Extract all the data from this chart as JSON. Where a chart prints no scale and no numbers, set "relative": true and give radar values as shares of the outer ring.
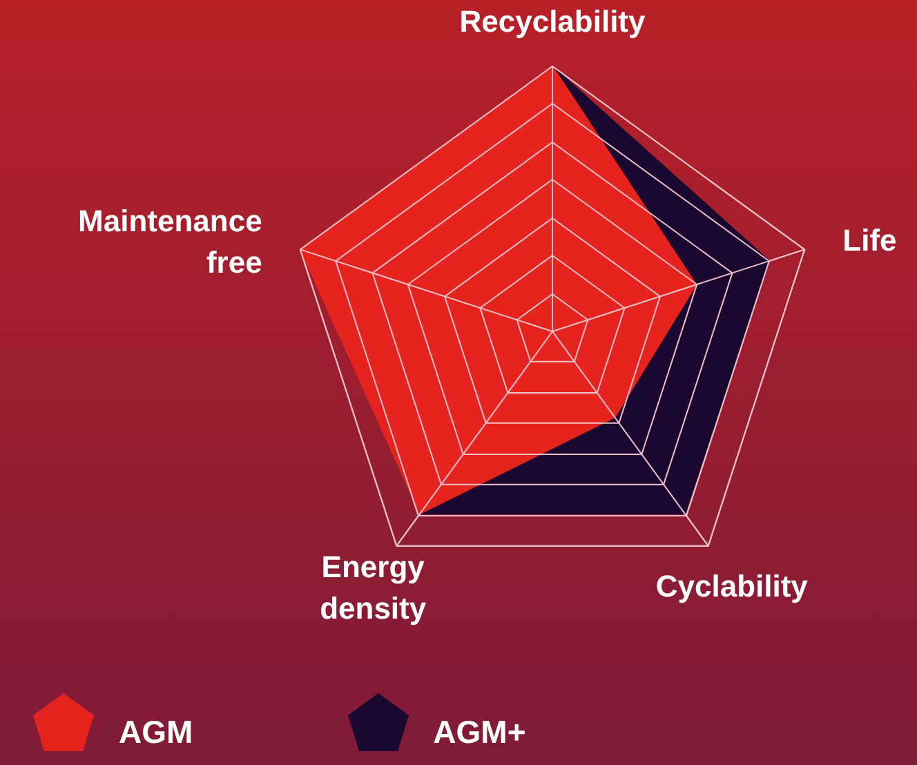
{
  "chart_data": {
    "type": "radar",
    "relative": true,
    "categories": [
      "Recyclability",
      "Life",
      "Cyclability",
      "Energy density",
      "Maintenance free"
    ],
    "legend": "bottom left",
    "series": [
      {
        "name": "AGM+",
        "color": "#1a0830",
        "values": [
          1,
          0.86,
          0.85,
          0.85,
          1
        ]
      },
      {
        "name": "AGM",
        "color": "#e52420",
        "values": [
          1,
          0.57,
          0.4,
          0.85,
          1
        ]
      }
    ]
  }
}
